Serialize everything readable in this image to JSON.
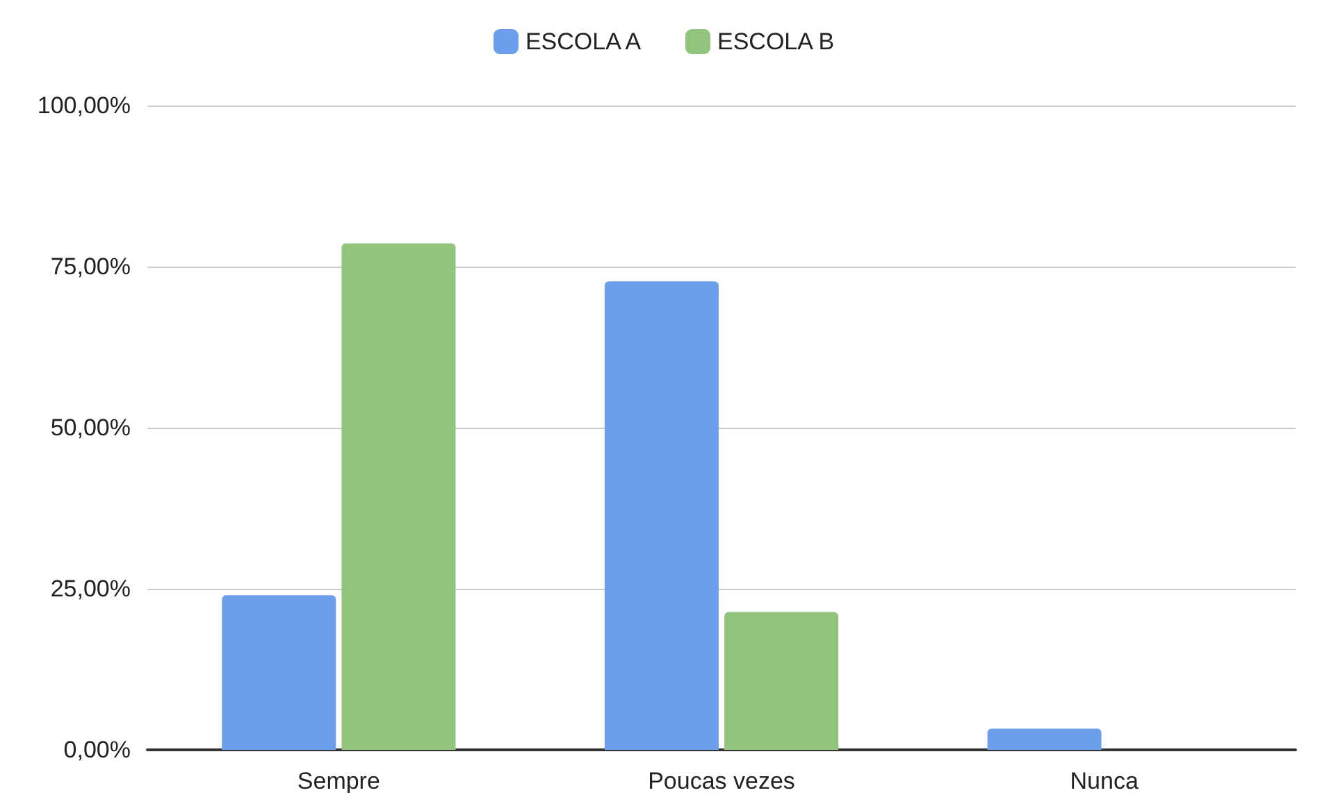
{
  "chart_data": {
    "type": "bar",
    "categories": [
      "Sempre",
      "Poucas vezes",
      "Nunca"
    ],
    "series": [
      {
        "name": "ESCOLA A",
        "color": "#6d9eeb",
        "values": [
          24.0,
          72.7,
          3.3
        ]
      },
      {
        "name": "ESCOLA B",
        "color": "#93c47d",
        "values": [
          78.6,
          21.4,
          0
        ]
      }
    ],
    "ylim": [
      0,
      100
    ],
    "yticks": [
      {
        "value": 0,
        "label": "0,00%"
      },
      {
        "value": 25,
        "label": "25,00%"
      },
      {
        "value": 50,
        "label": "50,00%"
      },
      {
        "value": 75,
        "label": "75,00%"
      },
      {
        "value": 100,
        "label": "100,00%"
      }
    ],
    "grid": "y",
    "legend": "top"
  }
}
